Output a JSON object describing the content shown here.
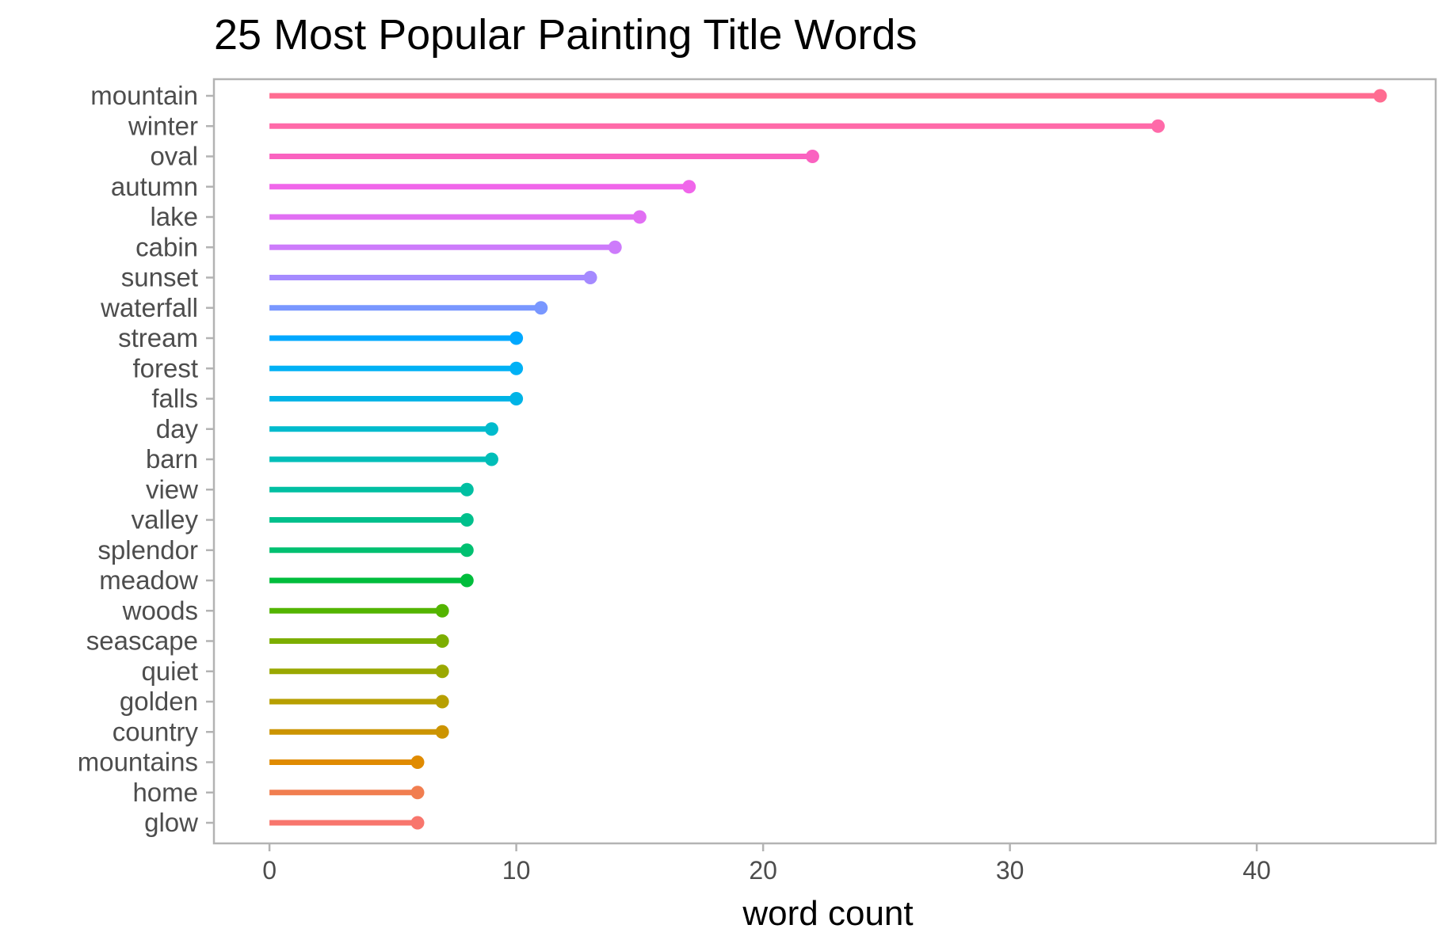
{
  "chart_data": {
    "type": "bar",
    "style": "lollipop",
    "orientation": "horizontal",
    "title": "25 Most Popular Painting Title Words",
    "xlabel": "word count",
    "ylabel": "",
    "xlim": [
      -2.25,
      47.25
    ],
    "x_ticks": [
      0,
      10,
      20,
      30,
      40
    ],
    "x_tick_labels": [
      "0",
      "10",
      "20",
      "30",
      "40"
    ],
    "grid": false,
    "legend": "none",
    "categories": [
      "mountain",
      "winter",
      "oval",
      "autumn",
      "lake",
      "cabin",
      "sunset",
      "waterfall",
      "stream",
      "forest",
      "falls",
      "day",
      "barn",
      "view",
      "valley",
      "splendor",
      "meadow",
      "woods",
      "seascape",
      "quiet",
      "golden",
      "country",
      "mountains",
      "home",
      "glow"
    ],
    "values": [
      45,
      36,
      22,
      17,
      15,
      14,
      13,
      11,
      10,
      10,
      10,
      9,
      9,
      8,
      8,
      8,
      8,
      7,
      7,
      7,
      7,
      7,
      6,
      6,
      6
    ],
    "colors": [
      "#FF6C91",
      "#FF6AA9",
      "#FA62C0",
      "#F066EA",
      "#E16FF3",
      "#CD7BFB",
      "#A58AFF",
      "#7997FF",
      "#00A8FF",
      "#00B1F5",
      "#00B4E6",
      "#00BBCD",
      "#00BEB8",
      "#00BFA2",
      "#00C08C",
      "#00C071",
      "#00BD3C",
      "#53B400",
      "#7CAE00",
      "#9AA800",
      "#B79F00",
      "#CC9400",
      "#E08B00",
      "#F17E50",
      "#F8766D"
    ]
  }
}
